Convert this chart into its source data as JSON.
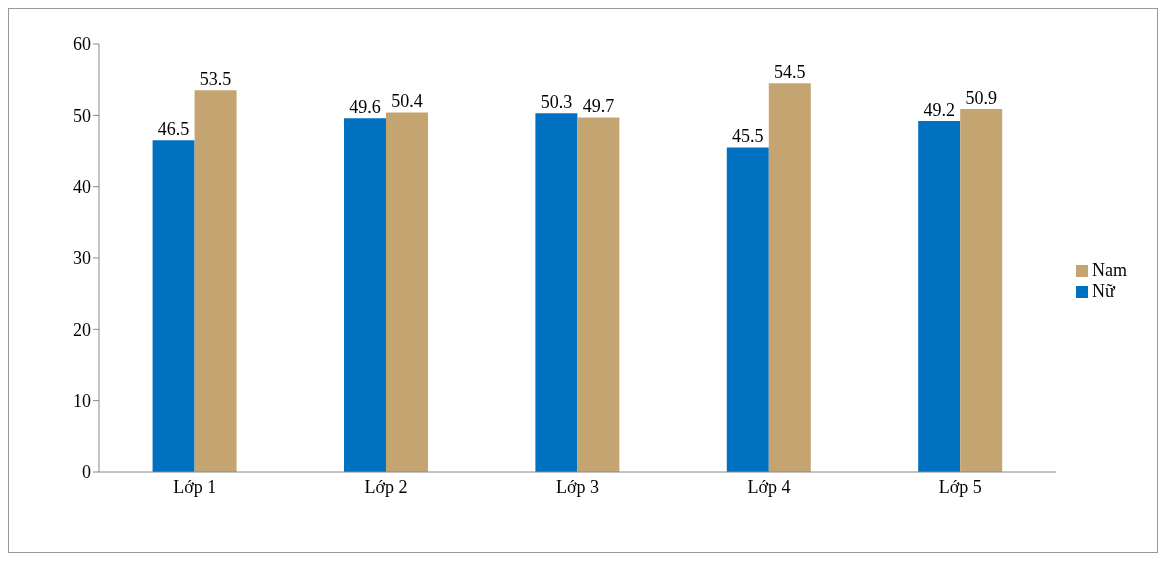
{
  "chart_data": {
    "type": "bar",
    "categories": [
      "Lớp 1",
      "Lớp 2",
      "Lớp 3",
      "Lớp 4",
      "Lớp 5"
    ],
    "series": [
      {
        "name": "Nữ",
        "color": "#0070c0",
        "values": [
          46.5,
          49.6,
          50.3,
          45.5,
          49.2
        ]
      },
      {
        "name": "Nam",
        "color": "#c4a572",
        "values": [
          53.5,
          50.4,
          49.7,
          54.5,
          50.9
        ]
      }
    ],
    "ylim": [
      0,
      60
    ],
    "yticks": [
      0,
      10,
      20,
      30,
      40,
      50,
      60
    ],
    "grid": false,
    "legend": "right",
    "data_labels": true
  }
}
